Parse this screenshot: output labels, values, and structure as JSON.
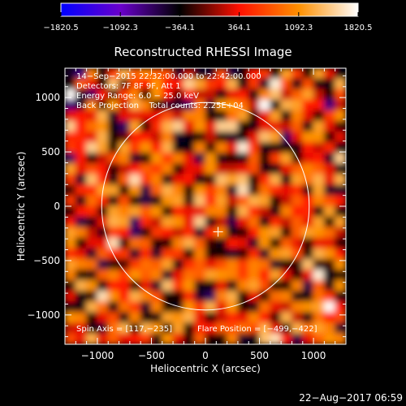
{
  "chart_data": {
    "type": "heatmap",
    "title": "Reconstructed RHESSI Image",
    "xlabel": "Heliocentric X (arcsec)",
    "ylabel": "Heliocentric Y (arcsec)",
    "xlim": [
      -1300,
      1300
    ],
    "ylim": [
      -1270,
      1270
    ],
    "xticks": [
      -1000,
      -500,
      0,
      500,
      1000
    ],
    "xtick_labels": [
      "−1000",
      "−500",
      "0",
      "500",
      "1000"
    ],
    "yticks": [
      1000,
      500,
      0,
      -500,
      -1000
    ],
    "ytick_labels": [
      "1000",
      "500",
      "0",
      "−500",
      "−1000"
    ],
    "colorbar": {
      "min": -1820.5,
      "max": 1820.5,
      "tick_values": [
        -1820.5,
        -1092.3,
        -364.1,
        364.1,
        1092.3,
        1820.5
      ],
      "tick_labels": [
        "−1820.5",
        "−1092.3",
        "−364.1",
        "364.1",
        "1092.3",
        "1820.5"
      ],
      "stops": [
        "#0000ff",
        "#6a00cc",
        "#000000",
        "#ff1000",
        "#ff9000",
        "#ffffff"
      ]
    },
    "annotations": [
      "14−Sep−2015 22:32:00.000 to 22:42:00.000",
      "Detectors: 7F 8F 9F, Att 1",
      "Energy Range: 6.0 − 25.0 keV",
      "Back Projection    Total counts: 2.25E+04"
    ],
    "footer_left": "Spin Axis = [117,−235]",
    "footer_right": "Flare Position = [−499,−422]",
    "solar_disk": {
      "center": [
        0,
        0
      ],
      "radius": 960
    },
    "crosshair": [
      117,
      -235
    ],
    "grid": false,
    "grid_size": [
      26,
      26
    ],
    "cell_values": [
      [
        -500,
        -800,
        1000,
        -400,
        600,
        1300,
        800,
        1000,
        800,
        700,
        -500,
        200,
        -500,
        -500,
        700,
        -600,
        -300,
        400,
        600,
        -300,
        1200,
        600,
        -300,
        1200,
        300,
        -400
      ],
      [
        -300,
        800,
        300,
        -300,
        1400,
        -100,
        700,
        400,
        1100,
        400,
        400,
        1500,
        1200,
        600,
        400,
        1300,
        -400,
        600,
        -500,
        1700,
        700,
        -400,
        700,
        -400,
        -400,
        1300
      ],
      [
        1800,
        -500,
        -700,
        400,
        -200,
        600,
        1000,
        -300,
        1100,
        400,
        -100,
        400,
        200,
        200,
        -400,
        300,
        400,
        -400,
        1000,
        1400,
        200,
        800,
        1200,
        200,
        -300,
        700
      ],
      [
        -800,
        -500,
        1000,
        -200,
        1100,
        200,
        1300,
        1000,
        -300,
        -500,
        -500,
        -700,
        900,
        -500,
        1100,
        1100,
        900,
        200,
        1800,
        -400,
        1300,
        1200,
        400,
        400,
        -800,
        200
      ],
      [
        300,
        400,
        300,
        1300,
        -500,
        300,
        300,
        300,
        300,
        700,
        200,
        1000,
        1000,
        -300,
        -300,
        900,
        1200,
        -200,
        300,
        1200,
        -400,
        1000,
        300,
        -300,
        600,
        1100
      ],
      [
        1500,
        400,
        900,
        1100,
        -400,
        -700,
        1200,
        -300,
        500,
        1300,
        1500,
        300,
        1100,
        300,
        1500,
        1500,
        -300,
        -400,
        300,
        300,
        200,
        800,
        -400,
        1200,
        300,
        -200
      ],
      [
        500,
        500,
        300,
        1300,
        -300,
        -100,
        400,
        400,
        200,
        1000,
        -500,
        -400,
        -300,
        200,
        -300,
        -500,
        -300,
        300,
        1400,
        1200,
        -700,
        300,
        1100,
        1100,
        -300,
        300
      ],
      [
        600,
        400,
        1500,
        1200,
        -300,
        1200,
        600,
        1100,
        400,
        1300,
        -400,
        -400,
        1000,
        -200,
        1000,
        300,
        1700,
        600,
        -400,
        -400,
        -300,
        -400,
        400,
        200,
        500,
        -400
      ],
      [
        -700,
        400,
        -300,
        200,
        700,
        1000,
        -500,
        -300,
        1100,
        600,
        1000,
        300,
        -600,
        1100,
        -400,
        -300,
        -400,
        800,
        -300,
        600,
        1200,
        -300,
        300,
        400,
        -500,
        1500
      ],
      [
        1200,
        300,
        700,
        400,
        -300,
        200,
        400,
        800,
        600,
        1000,
        -300,
        300,
        300,
        1100,
        200,
        200,
        300,
        700,
        -400,
        -400,
        300,
        800,
        1000,
        800,
        300,
        -400
      ],
      [
        600,
        -500,
        1400,
        500,
        -400,
        800,
        1600,
        600,
        1000,
        -400,
        300,
        400,
        -400,
        -200,
        1400,
        1200,
        1400,
        -300,
        500,
        1300,
        -400,
        1200,
        900,
        1300,
        300,
        1300
      ],
      [
        -200,
        500,
        500,
        1200,
        1200,
        -300,
        1100,
        -600,
        800,
        1300,
        1000,
        -300,
        1100,
        600,
        1000,
        -500,
        1600,
        -200,
        900,
        500,
        300,
        500,
        -400,
        1200,
        -500,
        -500
      ],
      [
        600,
        -400,
        900,
        500,
        -400,
        700,
        -300,
        -600,
        -400,
        1100,
        1200,
        -200,
        1400,
        500,
        1200,
        200,
        800,
        1300,
        1200,
        -300,
        200,
        800,
        400,
        1000,
        700,
        400
      ],
      [
        -300,
        400,
        500,
        -300,
        1200,
        1000,
        1200,
        800,
        1100,
        -300,
        400,
        300,
        300,
        1000,
        1000,
        -300,
        1300,
        500,
        200,
        -400,
        1000,
        400,
        500,
        -400,
        1200,
        -400
      ],
      [
        400,
        -600,
        -400,
        300,
        1300,
        1200,
        -700,
        500,
        200,
        1200,
        1100,
        300,
        1500,
        -400,
        200,
        -600,
        300,
        900,
        -400,
        500,
        200,
        800,
        300,
        1200,
        -300,
        1200
      ],
      [
        1200,
        1000,
        200,
        -400,
        600,
        400,
        -700,
        -300,
        600,
        400,
        200,
        500,
        -500,
        500,
        1000,
        -400,
        -300,
        400,
        1100,
        1200,
        -300,
        800,
        1200,
        1100,
        900,
        200
      ],
      [
        1100,
        -300,
        300,
        300,
        1600,
        -200,
        900,
        800,
        -300,
        -300,
        1000,
        1300,
        800,
        -200,
        -400,
        400,
        300,
        -500,
        1100,
        -300,
        800,
        300,
        -300,
        300,
        300,
        -300
      ],
      [
        500,
        300,
        -500,
        800,
        500,
        600,
        -500,
        500,
        -500,
        600,
        600,
        -300,
        1000,
        -300,
        -300,
        -500,
        -300,
        500,
        -500,
        1100,
        1200,
        700,
        -300,
        1300,
        1100,
        400
      ],
      [
        1200,
        1000,
        900,
        -600,
        -300,
        -200,
        600,
        900,
        800,
        1200,
        -400,
        500,
        800,
        300,
        700,
        1000,
        600,
        1000,
        900,
        -500,
        -300,
        -200,
        1400,
        -200,
        -200,
        1100
      ],
      [
        1000,
        -300,
        -400,
        800,
        1000,
        600,
        1100,
        800,
        1000,
        -500,
        300,
        900,
        800,
        1200,
        1100,
        1000,
        600,
        1000,
        400,
        1200,
        300,
        -300,
        300,
        1700,
        -400,
        -300
      ],
      [
        -300,
        1300,
        1100,
        -400,
        400,
        400,
        -300,
        300,
        -500,
        1400,
        600,
        1100,
        -400,
        -300,
        300,
        -400,
        1000,
        1200,
        700,
        -300,
        -300,
        1000,
        -600,
        800,
        -400,
        1100
      ],
      [
        300,
        -400,
        -200,
        1600,
        1100,
        400,
        1300,
        1000,
        700,
        -300,
        -300,
        500,
        -500,
        -700,
        1000,
        1300,
        -300,
        300,
        -300,
        900,
        1000,
        -400,
        -400,
        900,
        600,
        -400
      ],
      [
        -400,
        -400,
        1300,
        900,
        -400,
        900,
        600,
        -500,
        1000,
        -300,
        -400,
        1100,
        600,
        1300,
        300,
        1100,
        -300,
        -400,
        900,
        300,
        200,
        1000,
        1100,
        1200,
        1800,
        400
      ],
      [
        1100,
        1000,
        -300,
        300,
        700,
        -400,
        1000,
        -300,
        -400,
        1200,
        1100,
        1300,
        300,
        -300,
        200,
        500,
        300,
        1000,
        400,
        -200,
        1300,
        200,
        -400,
        900,
        400,
        700
      ],
      [
        200,
        300,
        -400,
        -500,
        900,
        1300,
        -300,
        1300,
        1100,
        -400,
        1200,
        -300,
        500,
        400,
        800,
        700,
        900,
        700,
        1300,
        300,
        -400,
        1300,
        900,
        1200,
        1000,
        -500
      ],
      [
        700,
        300,
        1300,
        300,
        800,
        300,
        400,
        600,
        -400,
        1100,
        300,
        -300,
        800,
        -300,
        -300,
        1000,
        -500,
        -400,
        1400,
        1600,
        400,
        -600,
        300,
        800,
        1100,
        1000
      ]
    ]
  },
  "timestamp": "22−Aug−2017 06:59",
  "colors": {
    "disk": "#ffffff",
    "frame": "#ffffff",
    "background": "#000000"
  }
}
